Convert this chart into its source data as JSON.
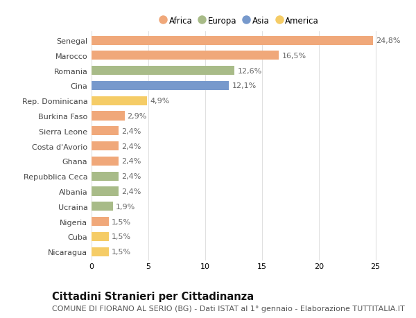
{
  "categories": [
    "Senegal",
    "Marocco",
    "Romania",
    "Cina",
    "Rep. Dominicana",
    "Burkina Faso",
    "Sierra Leone",
    "Costa d'Avorio",
    "Ghana",
    "Repubblica Ceca",
    "Albania",
    "Ucraina",
    "Nigeria",
    "Cuba",
    "Nicaragua"
  ],
  "values": [
    24.8,
    16.5,
    12.6,
    12.1,
    4.9,
    2.9,
    2.4,
    2.4,
    2.4,
    2.4,
    2.4,
    1.9,
    1.5,
    1.5,
    1.5
  ],
  "labels": [
    "24,8%",
    "16,5%",
    "12,6%",
    "12,1%",
    "4,9%",
    "2,9%",
    "2,4%",
    "2,4%",
    "2,4%",
    "2,4%",
    "2,4%",
    "1,9%",
    "1,5%",
    "1,5%",
    "1,5%"
  ],
  "continents": [
    "Africa",
    "Africa",
    "Europa",
    "Asia",
    "America",
    "Africa",
    "Africa",
    "Africa",
    "Africa",
    "Europa",
    "Europa",
    "Europa",
    "Africa",
    "America",
    "America"
  ],
  "colors": {
    "Africa": "#F0A87A",
    "Europa": "#A8BB88",
    "Asia": "#7799CC",
    "America": "#F5CC66"
  },
  "legend_order": [
    "Africa",
    "Europa",
    "Asia",
    "America"
  ],
  "title": "Cittadini Stranieri per Cittadinanza",
  "subtitle": "COMUNE DI FIORANO AL SERIO (BG) - Dati ISTAT al 1° gennaio - Elaborazione TUTTITALIA.IT",
  "xlim": [
    0,
    26
  ],
  "xticks": [
    0,
    5,
    10,
    15,
    20,
    25
  ],
  "background_color": "#ffffff",
  "grid_color": "#e0e0e0",
  "bar_height": 0.6,
  "title_fontsize": 10.5,
  "subtitle_fontsize": 8,
  "tick_fontsize": 8,
  "label_fontsize": 8,
  "legend_fontsize": 8.5
}
